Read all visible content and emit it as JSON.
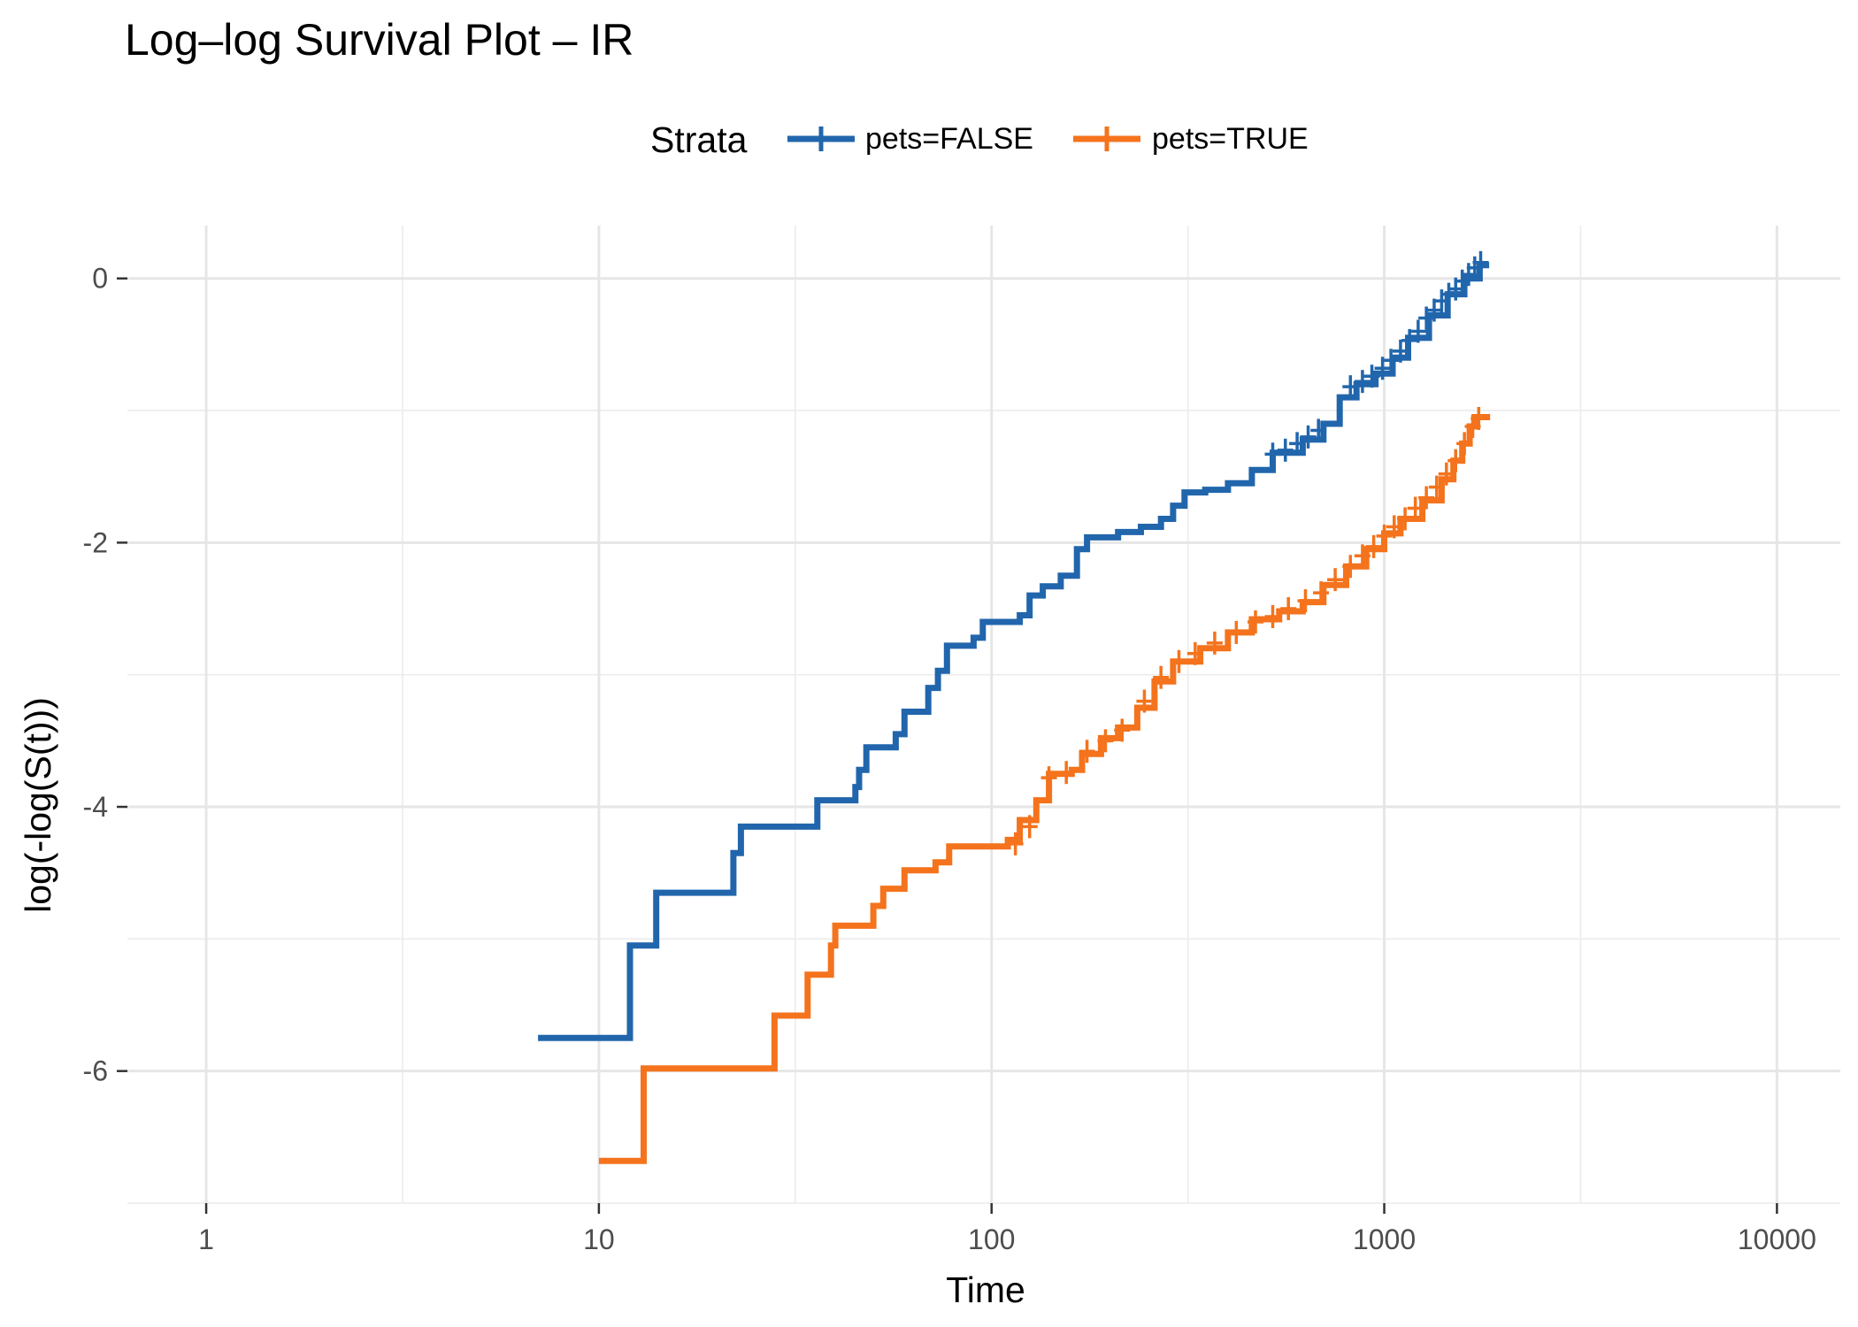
{
  "chart_data": {
    "type": "line",
    "title": "Log–log Survival Plot – IR",
    "xlabel": "Time",
    "ylabel": "log(-log(S(t)))",
    "x_scale": "log10",
    "xlim": [
      0.63,
      14500
    ],
    "ylim": [
      -7.0,
      0.4
    ],
    "x_ticks": [
      1,
      10,
      100,
      1000,
      10000
    ],
    "x_tick_labels": [
      "1",
      "10",
      "100",
      "1000",
      "10000"
    ],
    "y_ticks": [
      0,
      -2,
      -4,
      -6
    ],
    "y_tick_labels": [
      "0",
      "-2",
      "-4",
      "-6"
    ],
    "grid": true,
    "legend": {
      "title": "Strata",
      "placement": "top",
      "entries": [
        "pets=FALSE",
        "pets=TRUE"
      ]
    },
    "series": [
      {
        "name": "pets=FALSE",
        "color": "#2166ac",
        "steps": [
          [
            7,
            -5.75
          ],
          [
            12,
            -5.05
          ],
          [
            14,
            -4.65
          ],
          [
            22,
            -4.35
          ],
          [
            23,
            -4.15
          ],
          [
            36,
            -3.95
          ],
          [
            45,
            -3.85
          ],
          [
            46,
            -3.72
          ],
          [
            48,
            -3.55
          ],
          [
            57,
            -3.45
          ],
          [
            60,
            -3.28
          ],
          [
            69,
            -3.1
          ],
          [
            73,
            -2.97
          ],
          [
            77,
            -2.78
          ],
          [
            90,
            -2.72
          ],
          [
            95,
            -2.6
          ],
          [
            118,
            -2.55
          ],
          [
            125,
            -2.4
          ],
          [
            135,
            -2.33
          ],
          [
            150,
            -2.25
          ],
          [
            165,
            -2.05
          ],
          [
            175,
            -1.96
          ],
          [
            210,
            -1.92
          ],
          [
            240,
            -1.88
          ],
          [
            270,
            -1.82
          ],
          [
            290,
            -1.72
          ],
          [
            310,
            -1.62
          ],
          [
            350,
            -1.6
          ],
          [
            400,
            -1.55
          ],
          [
            460,
            -1.45
          ],
          [
            520,
            -1.32
          ],
          [
            620,
            -1.22
          ],
          [
            700,
            -1.1
          ],
          [
            770,
            -0.9
          ],
          [
            850,
            -0.8
          ],
          [
            950,
            -0.72
          ],
          [
            1050,
            -0.6
          ],
          [
            1150,
            -0.45
          ],
          [
            1300,
            -0.28
          ],
          [
            1450,
            -0.12
          ],
          [
            1600,
            0.0
          ],
          [
            1750,
            0.1
          ]
        ],
        "censored": [
          [
            520,
            -1.33
          ],
          [
            560,
            -1.3
          ],
          [
            600,
            -1.25
          ],
          [
            640,
            -1.2
          ],
          [
            680,
            -1.15
          ],
          [
            820,
            -0.82
          ],
          [
            880,
            -0.78
          ],
          [
            930,
            -0.74
          ],
          [
            990,
            -0.68
          ],
          [
            1040,
            -0.62
          ],
          [
            1100,
            -0.55
          ],
          [
            1160,
            -0.47
          ],
          [
            1220,
            -0.4
          ],
          [
            1280,
            -0.3
          ],
          [
            1340,
            -0.24
          ],
          [
            1400,
            -0.17
          ],
          [
            1460,
            -0.12
          ],
          [
            1520,
            -0.08
          ],
          [
            1580,
            -0.02
          ],
          [
            1640,
            0.03
          ],
          [
            1700,
            0.08
          ],
          [
            1760,
            0.12
          ]
        ],
        "x_end": 1850
      },
      {
        "name": "pets=TRUE",
        "color": "#f4731c",
        "steps": [
          [
            10,
            -6.68
          ],
          [
            13,
            -5.98
          ],
          [
            28,
            -5.58
          ],
          [
            34,
            -5.27
          ],
          [
            39,
            -5.05
          ],
          [
            40,
            -4.9
          ],
          [
            50,
            -4.75
          ],
          [
            53,
            -4.62
          ],
          [
            60,
            -4.48
          ],
          [
            72,
            -4.42
          ],
          [
            78,
            -4.3
          ],
          [
            110,
            -4.25
          ],
          [
            118,
            -4.1
          ],
          [
            130,
            -3.95
          ],
          [
            140,
            -3.75
          ],
          [
            160,
            -3.72
          ],
          [
            170,
            -3.6
          ],
          [
            190,
            -3.48
          ],
          [
            210,
            -3.4
          ],
          [
            235,
            -3.25
          ],
          [
            260,
            -3.05
          ],
          [
            290,
            -2.9
          ],
          [
            340,
            -2.8
          ],
          [
            400,
            -2.68
          ],
          [
            460,
            -2.58
          ],
          [
            540,
            -2.52
          ],
          [
            620,
            -2.45
          ],
          [
            700,
            -2.32
          ],
          [
            800,
            -2.18
          ],
          [
            900,
            -2.05
          ],
          [
            1000,
            -1.93
          ],
          [
            1100,
            -1.82
          ],
          [
            1250,
            -1.68
          ],
          [
            1400,
            -1.52
          ],
          [
            1500,
            -1.38
          ],
          [
            1580,
            -1.25
          ],
          [
            1650,
            -1.12
          ],
          [
            1700,
            -1.05
          ]
        ],
        "censored": [
          [
            115,
            -4.28
          ],
          [
            125,
            -4.15
          ],
          [
            140,
            -3.78
          ],
          [
            155,
            -3.74
          ],
          [
            175,
            -3.58
          ],
          [
            195,
            -3.5
          ],
          [
            215,
            -3.42
          ],
          [
            245,
            -3.2
          ],
          [
            270,
            -3.02
          ],
          [
            300,
            -2.9
          ],
          [
            330,
            -2.84
          ],
          [
            370,
            -2.76
          ],
          [
            420,
            -2.68
          ],
          [
            470,
            -2.6
          ],
          [
            520,
            -2.56
          ],
          [
            570,
            -2.5
          ],
          [
            630,
            -2.44
          ],
          [
            690,
            -2.38
          ],
          [
            750,
            -2.28
          ],
          [
            820,
            -2.18
          ],
          [
            880,
            -2.1
          ],
          [
            940,
            -2.03
          ],
          [
            1000,
            -1.95
          ],
          [
            1060,
            -1.88
          ],
          [
            1130,
            -1.82
          ],
          [
            1200,
            -1.74
          ],
          [
            1280,
            -1.66
          ],
          [
            1360,
            -1.58
          ],
          [
            1440,
            -1.48
          ],
          [
            1520,
            -1.38
          ],
          [
            1600,
            -1.25
          ],
          [
            1680,
            -1.12
          ],
          [
            1740,
            -1.06
          ]
        ],
        "x_end": 1860
      }
    ]
  }
}
